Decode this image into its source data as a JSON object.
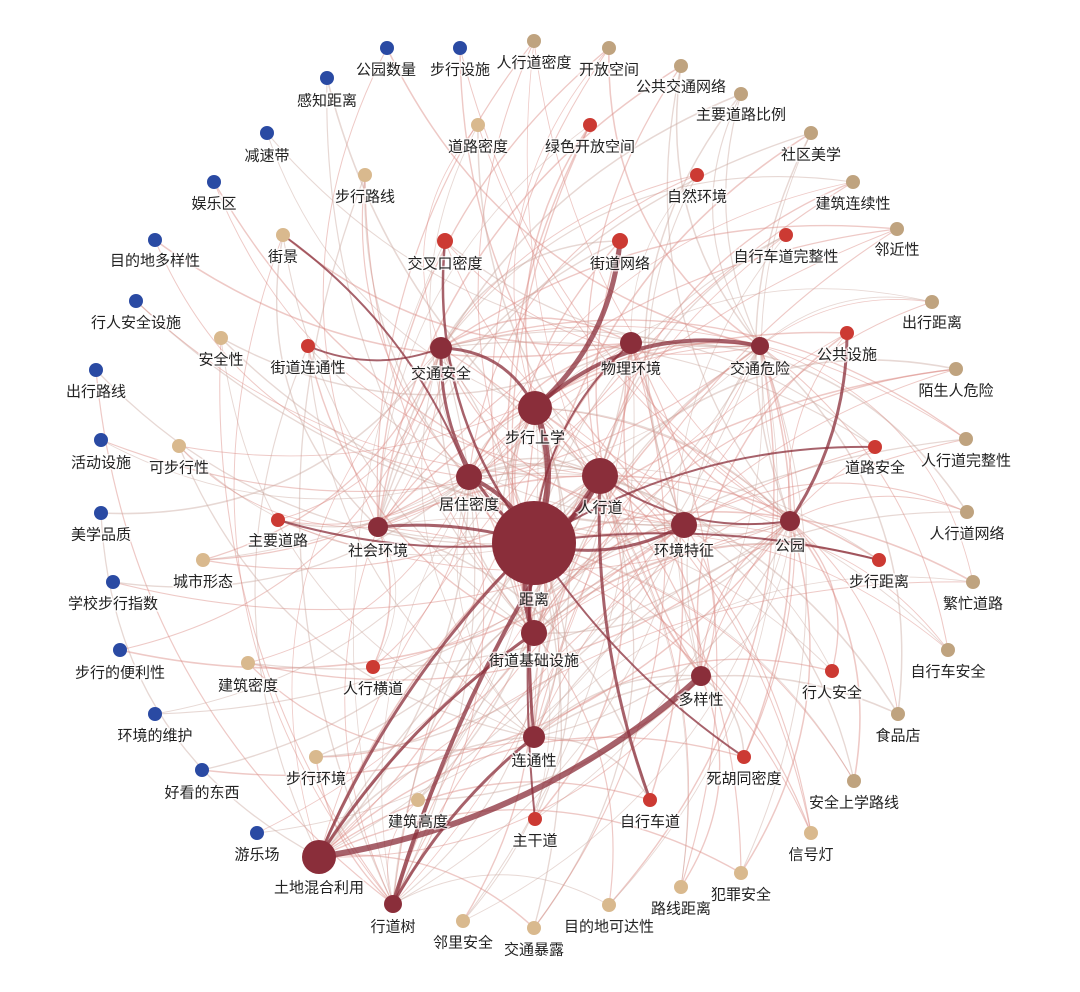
{
  "nodes": [
    {
      "label": "公园数量",
      "color": "#2a4aa3"
    },
    {
      "label": "步行设施",
      "color": "#2a4aa3"
    },
    {
      "label": "感知距离",
      "color": "#2a4aa3"
    },
    {
      "label": "减速带",
      "color": "#2a4aa3"
    },
    {
      "label": "娱乐区",
      "color": "#2a4aa3"
    },
    {
      "label": "目的地多样性",
      "color": "#2a4aa3"
    },
    {
      "label": "行人安全设施",
      "color": "#2a4aa3"
    },
    {
      "label": "出行路线",
      "color": "#2a4aa3"
    },
    {
      "label": "活动设施",
      "color": "#2a4aa3"
    },
    {
      "label": "美学品质",
      "color": "#2a4aa3"
    },
    {
      "label": "学校步行指数",
      "color": "#2a4aa3"
    },
    {
      "label": "步行的便利性",
      "color": "#2a4aa3"
    },
    {
      "label": "环境的维护",
      "color": "#2a4aa3"
    },
    {
      "label": "好看的东西",
      "color": "#2a4aa3"
    },
    {
      "label": "游乐场",
      "color": "#2a4aa3"
    },
    {
      "label": "人行道密度",
      "color": "#bfa37f"
    },
    {
      "label": "开放空间",
      "color": "#bfa37f"
    },
    {
      "label": "公共交通网络",
      "color": "#bfa37f"
    },
    {
      "label": "主要道路比例",
      "color": "#bfa37f"
    },
    {
      "label": "社区美学",
      "color": "#bfa37f"
    },
    {
      "label": "建筑连续性",
      "color": "#bfa37f"
    },
    {
      "label": "邻近性",
      "color": "#bfa37f"
    },
    {
      "label": "出行距离",
      "color": "#bfa37f"
    },
    {
      "label": "陌生人危险",
      "color": "#bfa37f"
    },
    {
      "label": "人行道完整性",
      "color": "#bfa37f"
    },
    {
      "label": "人行道网络",
      "color": "#bfa37f"
    },
    {
      "label": "繁忙道路",
      "color": "#bfa37f"
    },
    {
      "label": "自行车安全",
      "color": "#bfa37f"
    },
    {
      "label": "食品店",
      "color": "#bfa37f"
    },
    {
      "label": "安全上学路线",
      "color": "#bfa37f"
    },
    {
      "label": "信号灯",
      "color": "#d9b98e"
    },
    {
      "label": "犯罪安全",
      "color": "#d9b98e"
    },
    {
      "label": "路线距离",
      "color": "#d9b98e"
    },
    {
      "label": "目的地可达性",
      "color": "#d9b98e"
    },
    {
      "label": "交通暴露",
      "color": "#d9b98e"
    },
    {
      "label": "邻里安全",
      "color": "#d9b98e"
    },
    {
      "label": "道路密度",
      "color": "#d9b98e"
    },
    {
      "label": "步行路线",
      "color": "#d9b98e"
    },
    {
      "label": "街景",
      "color": "#d9b98e"
    },
    {
      "label": "安全性",
      "color": "#d9b98e"
    },
    {
      "label": "可步行性",
      "color": "#d9b98e"
    },
    {
      "label": "城市形态",
      "color": "#d9b98e"
    },
    {
      "label": "建筑密度",
      "color": "#d9b98e"
    },
    {
      "label": "步行环境",
      "color": "#d9b98e"
    },
    {
      "label": "建筑高度",
      "color": "#d9b98e"
    },
    {
      "label": "绿色开放空间",
      "color": "#cc3a33"
    },
    {
      "label": "自然环境",
      "color": "#cc3a33"
    },
    {
      "label": "交叉口密度",
      "color": "#cc3a33"
    },
    {
      "label": "街道网络",
      "color": "#cc3a33"
    },
    {
      "label": "自行车道完整性",
      "color": "#cc3a33"
    },
    {
      "label": "街道连通性",
      "color": "#cc3a33"
    },
    {
      "label": "公共设施",
      "color": "#cc3a33"
    },
    {
      "label": "道路安全",
      "color": "#cc3a33"
    },
    {
      "label": "主要道路",
      "color": "#cc3a33"
    },
    {
      "label": "步行距离",
      "color": "#cc3a33"
    },
    {
      "label": "人行横道",
      "color": "#cc3a33"
    },
    {
      "label": "行人安全",
      "color": "#cc3a33"
    },
    {
      "label": "死胡同密度",
      "color": "#cc3a33"
    },
    {
      "label": "自行车道",
      "color": "#cc3a33"
    },
    {
      "label": "主干道",
      "color": "#cc3a33"
    },
    {
      "label": "距离",
      "color": "#8a2e3a"
    },
    {
      "label": "步行上学",
      "color": "#8a2e3a"
    },
    {
      "label": "人行道",
      "color": "#8a2e3a"
    },
    {
      "label": "居住密度",
      "color": "#8a2e3a"
    },
    {
      "label": "交通安全",
      "color": "#8a2e3a"
    },
    {
      "label": "物理环境",
      "color": "#8a2e3a"
    },
    {
      "label": "交通危险",
      "color": "#8a2e3a"
    },
    {
      "label": "社会环境",
      "color": "#8a2e3a"
    },
    {
      "label": "环境特征",
      "color": "#8a2e3a"
    },
    {
      "label": "公园",
      "color": "#8a2e3a"
    },
    {
      "label": "街道基础设施",
      "color": "#8a2e3a"
    },
    {
      "label": "多样性",
      "color": "#8a2e3a"
    },
    {
      "label": "连通性",
      "color": "#8a2e3a"
    },
    {
      "label": "土地混合利用",
      "color": "#8a2e3a"
    },
    {
      "label": "行道树",
      "color": "#8a2e3a"
    }
  ]
}
